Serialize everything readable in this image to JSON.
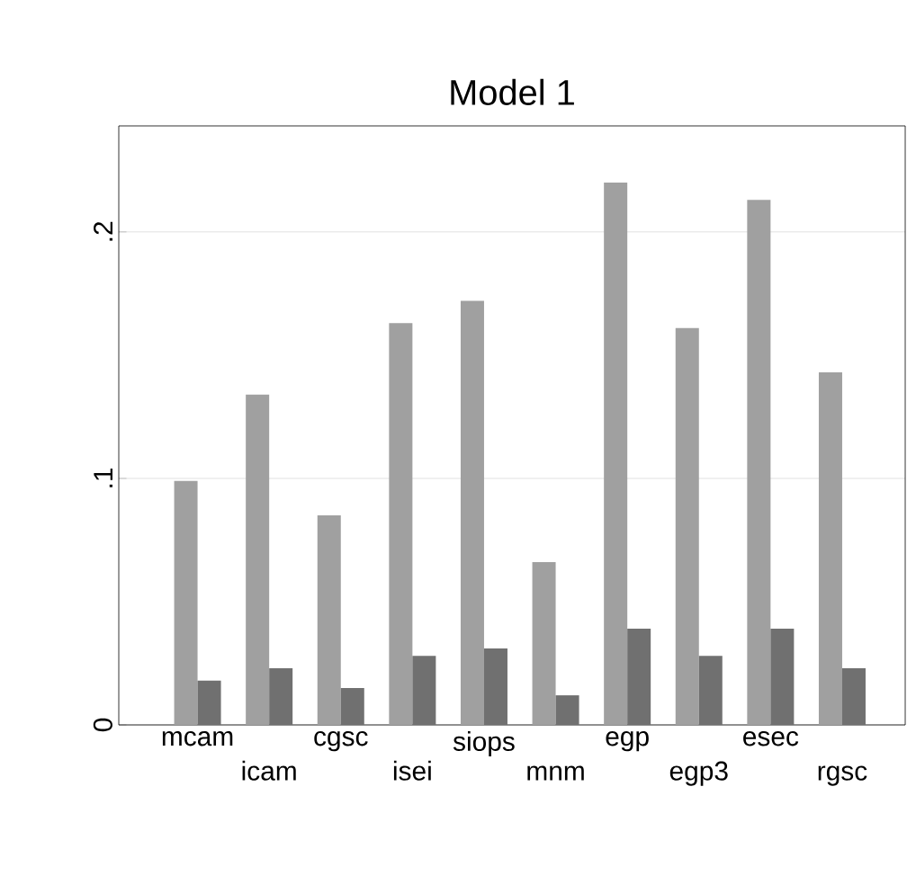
{
  "chart_data": {
    "type": "bar",
    "title": "Model 1",
    "categories": [
      "mcam",
      "icam",
      "cgsc",
      "isei",
      "siops",
      "mnm",
      "egp",
      "egp3",
      "esec",
      "rgsc"
    ],
    "series": [
      {
        "color": "#a0a0a0",
        "values": [
          0.099,
          0.134,
          0.085,
          0.163,
          0.172,
          0.066,
          0.22,
          0.161,
          0.213,
          0.143
        ]
      },
      {
        "color": "#707070",
        "values": [
          0.018,
          0.023,
          0.015,
          0.028,
          0.031,
          0.012,
          0.039,
          0.028,
          0.039,
          0.023
        ]
      }
    ],
    "ylim": [
      0,
      0.243
    ],
    "yticks": [
      0,
      {
        "value": 0.1,
        "label": ".1"
      },
      {
        "value": 0.2,
        "label": ".2"
      }
    ],
    "grid": "y"
  }
}
